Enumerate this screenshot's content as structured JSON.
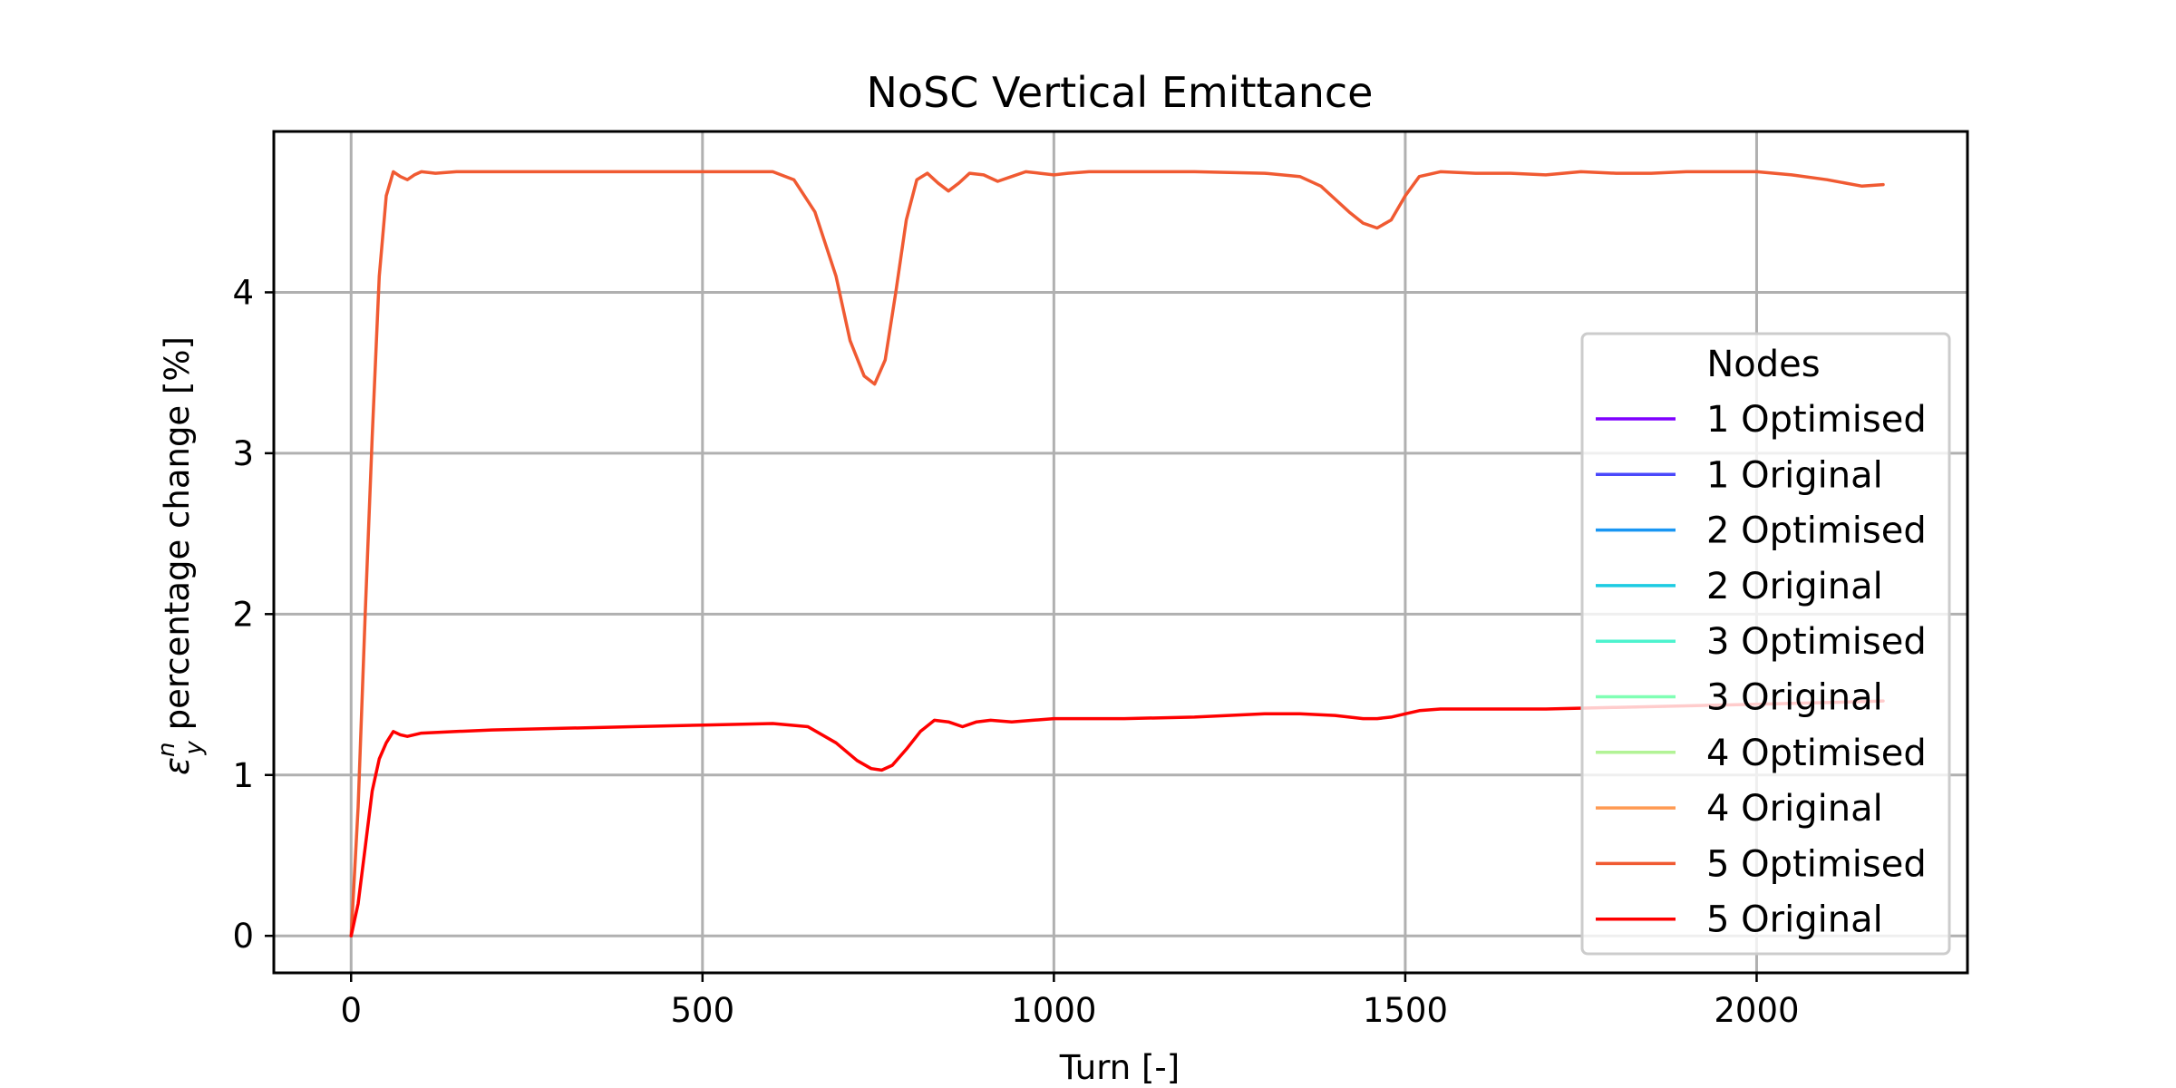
{
  "chart_data": {
    "type": "line",
    "title": "NoSC Vertical Emittance",
    "xlabel": "Turn [-]",
    "ylabel_parts": {
      "symbol": "ε",
      "superscript": "n",
      "subscript": "y",
      "rest": " percentage change [%]"
    },
    "xlim": [
      -110,
      2300
    ],
    "ylim": [
      -0.23,
      5.0
    ],
    "xticks": [
      0,
      500,
      1000,
      1500,
      2000
    ],
    "yticks": [
      0,
      1,
      2,
      3,
      4
    ],
    "grid": true,
    "legend": {
      "title": "Nodes",
      "placement": "center-right"
    },
    "series": [
      {
        "name": "1 Optimised",
        "color": "#7f00ff",
        "x": [],
        "y": []
      },
      {
        "name": "1 Original",
        "color": "#4a48fb",
        "x": [],
        "y": []
      },
      {
        "name": "2 Optimised",
        "color": "#1996f3",
        "x": [],
        "y": []
      },
      {
        "name": "2 Original",
        "color": "#1ccbe2",
        "x": [],
        "y": []
      },
      {
        "name": "3 Optimised",
        "color": "#4df3ce",
        "x": [],
        "y": []
      },
      {
        "name": "3 Original",
        "color": "#80ffb4",
        "x": [],
        "y": []
      },
      {
        "name": "4 Optimised",
        "color": "#b2f396",
        "x": [],
        "y": []
      },
      {
        "name": "4 Original",
        "color": "#ff9a52",
        "x": [],
        "y": []
      },
      {
        "name": "5 Optimised",
        "color": "#f05a32",
        "x": [
          0,
          10,
          20,
          30,
          40,
          50,
          60,
          70,
          80,
          90,
          100,
          120,
          150,
          200,
          300,
          400,
          500,
          600,
          630,
          660,
          690,
          710,
          730,
          745,
          760,
          775,
          790,
          805,
          820,
          835,
          850,
          865,
          880,
          900,
          920,
          940,
          960,
          980,
          1000,
          1020,
          1050,
          1100,
          1200,
          1300,
          1350,
          1380,
          1400,
          1420,
          1440,
          1460,
          1480,
          1500,
          1520,
          1550,
          1600,
          1650,
          1700,
          1750,
          1800,
          1850,
          1900,
          1950,
          2000,
          2050,
          2100,
          2150,
          2180
        ],
        "y": [
          0,
          0.8,
          2.0,
          3.1,
          4.1,
          4.6,
          4.75,
          4.72,
          4.7,
          4.73,
          4.75,
          4.74,
          4.75,
          4.75,
          4.75,
          4.75,
          4.75,
          4.75,
          4.7,
          4.5,
          4.1,
          3.7,
          3.48,
          3.43,
          3.58,
          4.0,
          4.45,
          4.7,
          4.74,
          4.68,
          4.63,
          4.68,
          4.74,
          4.73,
          4.69,
          4.72,
          4.75,
          4.74,
          4.73,
          4.74,
          4.75,
          4.75,
          4.75,
          4.74,
          4.72,
          4.66,
          4.58,
          4.5,
          4.43,
          4.4,
          4.45,
          4.6,
          4.72,
          4.75,
          4.74,
          4.74,
          4.73,
          4.75,
          4.74,
          4.74,
          4.75,
          4.75,
          4.75,
          4.73,
          4.7,
          4.66,
          4.67
        ]
      },
      {
        "name": "5 Original",
        "color": "#ff0000",
        "x": [
          0,
          10,
          20,
          30,
          40,
          50,
          60,
          70,
          80,
          100,
          150,
          200,
          300,
          400,
          500,
          600,
          650,
          690,
          720,
          740,
          755,
          770,
          790,
          810,
          830,
          850,
          870,
          890,
          910,
          940,
          970,
          1000,
          1100,
          1200,
          1300,
          1350,
          1400,
          1440,
          1460,
          1480,
          1500,
          1520,
          1550,
          1600,
          1700,
          1800,
          1900,
          2000,
          2100,
          2180
        ],
        "y": [
          0,
          0.2,
          0.55,
          0.9,
          1.1,
          1.2,
          1.27,
          1.25,
          1.24,
          1.26,
          1.27,
          1.28,
          1.29,
          1.3,
          1.31,
          1.32,
          1.3,
          1.2,
          1.09,
          1.04,
          1.03,
          1.06,
          1.16,
          1.27,
          1.34,
          1.33,
          1.3,
          1.33,
          1.34,
          1.33,
          1.34,
          1.35,
          1.35,
          1.36,
          1.38,
          1.38,
          1.37,
          1.35,
          1.35,
          1.36,
          1.38,
          1.4,
          1.41,
          1.41,
          1.41,
          1.42,
          1.43,
          1.44,
          1.45,
          1.46
        ]
      }
    ]
  }
}
